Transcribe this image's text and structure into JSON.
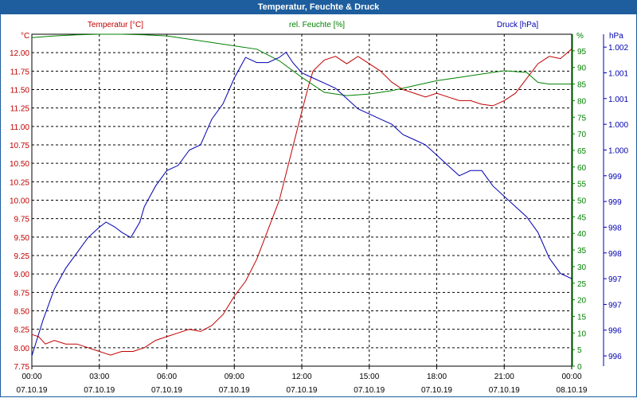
{
  "window": {
    "title": "Temperatur, Feuchte & Druck"
  },
  "chart_data": {
    "type": "line",
    "title": "Temperatur, Feuchte & Druck",
    "x": {
      "ticks": [
        {
          "time": "00:00",
          "date": "07.10.19"
        },
        {
          "time": "03:00",
          "date": "07.10.19"
        },
        {
          "time": "06:00",
          "date": "07.10.19"
        },
        {
          "time": "09:00",
          "date": "07.10.19"
        },
        {
          "time": "12:00",
          "date": "07.10.19"
        },
        {
          "time": "15:00",
          "date": "07.10.19"
        },
        {
          "time": "18:00",
          "date": "07.10.19"
        },
        {
          "time": "21:00",
          "date": "07.10.19"
        },
        {
          "time": "00:00",
          "date": "08.10.19"
        }
      ],
      "range_hours": [
        0,
        24
      ]
    },
    "axes": {
      "temperature": {
        "label": "Temperatur [°C]",
        "unit_label": "°C",
        "color": "#c00000",
        "range": [
          7.75,
          12.25
        ],
        "ticks": [
          "12.00",
          "11.75",
          "11.50",
          "11.25",
          "11.00",
          "10.75",
          "10.50",
          "10.25",
          "10.00",
          "9.75",
          "9.50",
          "9.25",
          "9.00",
          "8.75",
          "8.50",
          "8.25",
          "8.00",
          "7.75"
        ],
        "tick_values": [
          12.0,
          11.75,
          11.5,
          11.25,
          11.0,
          10.75,
          10.5,
          10.25,
          10.0,
          9.75,
          9.5,
          9.25,
          9.0,
          8.75,
          8.5,
          8.25,
          8.0,
          7.75
        ]
      },
      "humidity": {
        "label": "rel. Feuchte [%]",
        "unit_label": "%",
        "color": "#008000",
        "range": [
          0,
          100
        ],
        "ticks": [
          "95",
          "90",
          "85",
          "80",
          "75",
          "70",
          "65",
          "60",
          "55",
          "50",
          "45",
          "40",
          "35",
          "30",
          "25",
          "20",
          "15",
          "10",
          "5",
          "0"
        ],
        "tick_values": [
          95,
          90,
          85,
          80,
          75,
          70,
          65,
          60,
          55,
          50,
          45,
          40,
          35,
          30,
          25,
          20,
          15,
          10,
          5,
          0
        ]
      },
      "pressure": {
        "label": "Druck [hPa]",
        "unit_label": "hPa",
        "color": "#0000b0",
        "range": [
          995.8,
          1002.25
        ],
        "ticks": [
          "1.002",
          "1.001",
          "1.001",
          "1.000",
          "1.000",
          "999",
          "999",
          "998",
          "998",
          "997",
          "997",
          "996",
          "996"
        ],
        "tick_values": [
          1002.0,
          1001.5,
          1001.0,
          1000.5,
          1000.0,
          999.5,
          999.0,
          998.5,
          998.0,
          997.5,
          997.0,
          996.5,
          996.0
        ]
      }
    },
    "series": [
      {
        "name": "Temperatur",
        "axis": "temperature",
        "points": [
          [
            0,
            8.18
          ],
          [
            0.3,
            8.15
          ],
          [
            0.6,
            8.05
          ],
          [
            1,
            8.1
          ],
          [
            1.5,
            8.05
          ],
          [
            2,
            8.05
          ],
          [
            2.5,
            8.0
          ],
          [
            3,
            7.95
          ],
          [
            3.5,
            7.9
          ],
          [
            4,
            7.95
          ],
          [
            4.5,
            7.95
          ],
          [
            5,
            8.0
          ],
          [
            5.5,
            8.1
          ],
          [
            6,
            8.15
          ],
          [
            6.5,
            8.2
          ],
          [
            7,
            8.25
          ],
          [
            7.5,
            8.22
          ],
          [
            8,
            8.3
          ],
          [
            8.5,
            8.45
          ],
          [
            9,
            8.7
          ],
          [
            9.5,
            8.9
          ],
          [
            10,
            9.2
          ],
          [
            10.5,
            9.6
          ],
          [
            11,
            10.0
          ],
          [
            11.5,
            10.6
          ],
          [
            12,
            11.2
          ],
          [
            12.3,
            11.55
          ],
          [
            12.5,
            11.75
          ],
          [
            13,
            11.9
          ],
          [
            13.5,
            11.95
          ],
          [
            14,
            11.85
          ],
          [
            14.5,
            11.95
          ],
          [
            15,
            11.85
          ],
          [
            15.5,
            11.75
          ],
          [
            16,
            11.6
          ],
          [
            16.5,
            11.5
          ],
          [
            17,
            11.45
          ],
          [
            17.5,
            11.4
          ],
          [
            18,
            11.45
          ],
          [
            18.5,
            11.4
          ],
          [
            19,
            11.35
          ],
          [
            19.5,
            11.35
          ],
          [
            20,
            11.3
          ],
          [
            20.5,
            11.28
          ],
          [
            21,
            11.35
          ],
          [
            21.5,
            11.45
          ],
          [
            22,
            11.65
          ],
          [
            22.5,
            11.85
          ],
          [
            23,
            11.95
          ],
          [
            23.5,
            11.92
          ],
          [
            24,
            12.05
          ]
        ]
      },
      {
        "name": "rel. Feuchte",
        "axis": "humidity",
        "points": [
          [
            0,
            99
          ],
          [
            1,
            99.5
          ],
          [
            2,
            99.8
          ],
          [
            3,
            100
          ],
          [
            4,
            100
          ],
          [
            5,
            99.8
          ],
          [
            6,
            99.5
          ],
          [
            7,
            98.5
          ],
          [
            8,
            97.5
          ],
          [
            9,
            96.5
          ],
          [
            10,
            95.5
          ],
          [
            11,
            92
          ],
          [
            12,
            87
          ],
          [
            13,
            82.5
          ],
          [
            14,
            81.5
          ],
          [
            15,
            82
          ],
          [
            16,
            83
          ],
          [
            17,
            84.5
          ],
          [
            18,
            86
          ],
          [
            19,
            87
          ],
          [
            20,
            88
          ],
          [
            21,
            89
          ],
          [
            22,
            88.5
          ],
          [
            22.5,
            85.5
          ],
          [
            23,
            85
          ],
          [
            24,
            85
          ]
        ]
      },
      {
        "name": "Druck",
        "axis": "pressure",
        "points": [
          [
            0,
            996.0
          ],
          [
            0.5,
            996.7
          ],
          [
            1,
            997.3
          ],
          [
            1.5,
            997.7
          ],
          [
            2,
            998.0
          ],
          [
            2.5,
            998.3
          ],
          [
            3,
            998.5
          ],
          [
            3.3,
            998.6
          ],
          [
            3.7,
            998.5
          ],
          [
            4,
            998.4
          ],
          [
            4.4,
            998.3
          ],
          [
            4.8,
            998.6
          ],
          [
            5,
            998.9
          ],
          [
            5.5,
            999.3
          ],
          [
            6,
            999.6
          ],
          [
            6.5,
            999.7
          ],
          [
            7,
            1000.0
          ],
          [
            7.5,
            1000.1
          ],
          [
            8,
            1000.6
          ],
          [
            8.5,
            1000.9
          ],
          [
            9,
            1001.4
          ],
          [
            9.5,
            1001.8
          ],
          [
            10,
            1001.7
          ],
          [
            10.5,
            1001.7
          ],
          [
            11,
            1001.8
          ],
          [
            11.3,
            1001.9
          ],
          [
            11.6,
            1001.7
          ],
          [
            12,
            1001.5
          ],
          [
            12.5,
            1001.4
          ],
          [
            13,
            1001.3
          ],
          [
            13.5,
            1001.2
          ],
          [
            14,
            1001.0
          ],
          [
            14.5,
            1000.8
          ],
          [
            15,
            1000.7
          ],
          [
            15.5,
            1000.6
          ],
          [
            16,
            1000.5
          ],
          [
            16.5,
            1000.3
          ],
          [
            17,
            1000.2
          ],
          [
            17.5,
            1000.1
          ],
          [
            18,
            999.9
          ],
          [
            18.5,
            999.7
          ],
          [
            19,
            999.5
          ],
          [
            19.5,
            999.6
          ],
          [
            20,
            999.6
          ],
          [
            20.5,
            999.3
          ],
          [
            21,
            999.1
          ],
          [
            21.5,
            998.9
          ],
          [
            22,
            998.7
          ],
          [
            22.5,
            998.4
          ],
          [
            23,
            997.9
          ],
          [
            23.5,
            997.6
          ],
          [
            24,
            997.5
          ]
        ]
      }
    ],
    "grid": true,
    "legend": "top"
  }
}
